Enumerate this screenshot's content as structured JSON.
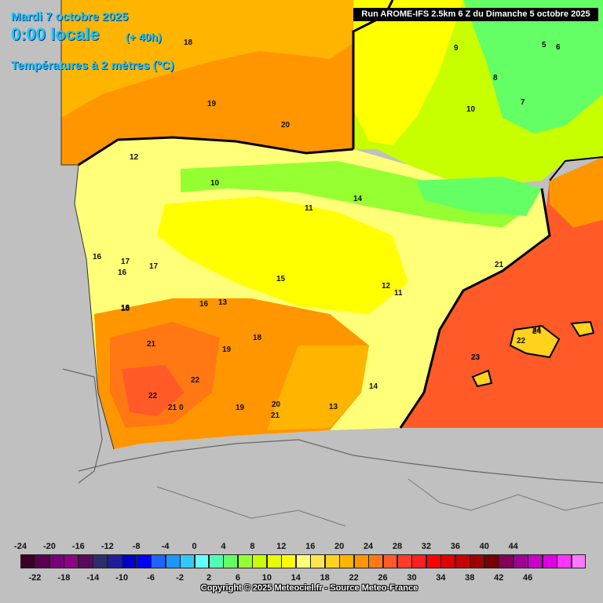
{
  "header": {
    "date": "Mardi 7 octobre 2025",
    "time": "0:00 locale",
    "lead": "(+ 40h)",
    "parameter": "Températures à 2 mètres (°C)",
    "run": "Run AROME-IFS 2.5km 6 Z du Dimanche 5 octobre 2025"
  },
  "legend": {
    "top_labels": [
      "-24",
      "-20",
      "-16",
      "-12",
      "-8",
      "-4",
      "0",
      "4",
      "8",
      "12",
      "16",
      "20",
      "24",
      "28",
      "32",
      "36",
      "40",
      "44"
    ],
    "bottom_labels": [
      "-22",
      "-18",
      "-14",
      "-10",
      "-6",
      "-2",
      "2",
      "6",
      "10",
      "14",
      "18",
      "22",
      "26",
      "30",
      "34",
      "38",
      "42",
      "46"
    ],
    "colors": [
      "#3c0028",
      "#5a0050",
      "#780078",
      "#8c0082",
      "#5a0a5a",
      "#2d2d6e",
      "#1e1e9c",
      "#0000c8",
      "#0000ff",
      "#1e64ff",
      "#1e96ff",
      "#32c8ff",
      "#64ffff",
      "#50ffb4",
      "#64ff64",
      "#96ff32",
      "#c8ff00",
      "#e6ff00",
      "#ffff00",
      "#ffff78",
      "#ffe650",
      "#ffd21e",
      "#ffb400",
      "#ff9600",
      "#ff7814",
      "#ff5a28",
      "#ff3c28",
      "#ff1e1e",
      "#ff0000",
      "#e10000",
      "#c80000",
      "#a00000",
      "#780000",
      "#82005a",
      "#a00096",
      "#c800c8",
      "#e100e1",
      "#ff32ff",
      "#ff78ff"
    ]
  },
  "map_labels": [
    "18",
    "19",
    "20",
    "12",
    "10",
    "11",
    "14",
    "15",
    "16",
    "17",
    "18",
    "13",
    "21",
    "22",
    "23",
    "24",
    "9",
    "8",
    "7",
    "6",
    "5",
    "22",
    "21",
    "20",
    "19",
    "18",
    "16",
    "14",
    "13",
    "12",
    "11",
    "10",
    "19",
    "22",
    "21",
    "0",
    "16",
    "17",
    "18",
    "21",
    "24",
    "23"
  ],
  "credit": "Copyright © 2025 Meteociel.fr - Source Meteo-France"
}
